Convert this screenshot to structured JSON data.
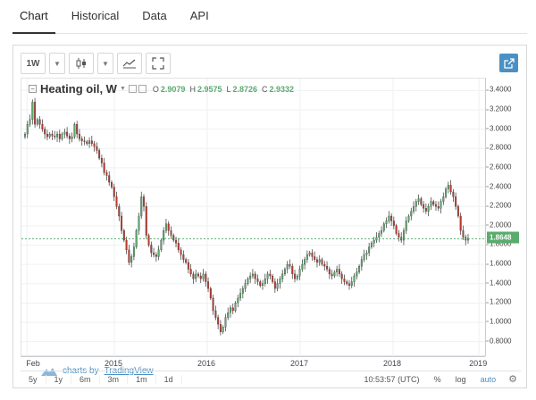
{
  "tabs": [
    "Chart",
    "Historical",
    "Data",
    "API"
  ],
  "toolbar": {
    "interval": "1W"
  },
  "legend": {
    "symbol": "Heating oil, W",
    "open_label": "O",
    "open": "2.9079",
    "high_label": "H",
    "high": "2.9575",
    "low_label": "L",
    "low": "2.8726",
    "close_label": "C",
    "close": "2.9332"
  },
  "last_price": "1.8648",
  "brand": {
    "prefix": "charts by",
    "name": "TradingView"
  },
  "bottom": {
    "ranges": [
      "5y",
      "1y",
      "6m",
      "3m",
      "1m",
      "1d"
    ],
    "clock": "10:53:57 (UTC)",
    "percent": "%",
    "log": "log",
    "auto": "auto"
  },
  "colors": {
    "up": "#5aab6e",
    "down": "#c0392b",
    "accent": "#4a90c4"
  },
  "chart_data": {
    "type": "candlestick",
    "title": "Heating oil, W",
    "x_ticks": [
      "Feb",
      "2015",
      "2016",
      "2017",
      "2018",
      "2019"
    ],
    "y_ticks": [
      "3.4000",
      "3.2000",
      "3.0000",
      "2.8000",
      "2.6000",
      "2.4000",
      "2.2000",
      "2.0000",
      "1.8000",
      "1.6000",
      "1.4000",
      "1.2000",
      "1.0000",
      "0.8000"
    ],
    "ylim": [
      0.75,
      3.45
    ],
    "grid": true,
    "series": [
      {
        "name": "Heating oil",
        "weekly_closes": [
          2.95,
          3.05,
          3.1,
          3.28,
          3.05,
          3.1,
          3.05,
          3.0,
          2.95,
          2.92,
          2.95,
          2.93,
          2.92,
          2.95,
          2.9,
          2.95,
          2.97,
          2.93,
          2.9,
          2.92,
          3.05,
          2.95,
          2.9,
          2.88,
          2.87,
          2.85,
          2.88,
          2.85,
          2.82,
          2.78,
          2.7,
          2.65,
          2.55,
          2.52,
          2.45,
          2.4,
          2.3,
          2.2,
          2.1,
          1.95,
          1.85,
          1.75,
          1.62,
          1.68,
          1.78,
          1.95,
          2.1,
          2.3,
          2.2,
          1.9,
          1.8,
          1.72,
          1.7,
          1.68,
          1.75,
          1.85,
          1.95,
          2.02,
          1.95,
          1.9,
          1.85,
          1.82,
          1.75,
          1.7,
          1.65,
          1.62,
          1.55,
          1.5,
          1.45,
          1.5,
          1.48,
          1.45,
          1.5,
          1.42,
          1.35,
          1.25,
          1.12,
          1.05,
          0.98,
          0.9,
          0.95,
          1.05,
          1.1,
          1.15,
          1.12,
          1.2,
          1.25,
          1.3,
          1.35,
          1.4,
          1.45,
          1.48,
          1.5,
          1.45,
          1.42,
          1.38,
          1.4,
          1.45,
          1.5,
          1.48,
          1.42,
          1.35,
          1.4,
          1.45,
          1.5,
          1.55,
          1.6,
          1.58,
          1.5,
          1.45,
          1.48,
          1.55,
          1.6,
          1.65,
          1.7,
          1.72,
          1.68,
          1.65,
          1.62,
          1.65,
          1.6,
          1.58,
          1.55,
          1.5,
          1.48,
          1.52,
          1.55,
          1.5,
          1.45,
          1.42,
          1.4,
          1.38,
          1.42,
          1.48,
          1.52,
          1.58,
          1.65,
          1.7,
          1.72,
          1.78,
          1.82,
          1.85,
          1.88,
          1.92,
          1.95,
          2.02,
          2.05,
          2.1,
          2.05,
          2.0,
          1.92,
          1.88,
          1.85,
          1.95,
          2.05,
          2.1,
          2.15,
          2.2,
          2.25,
          2.28,
          2.22,
          2.18,
          2.15,
          2.2,
          2.25,
          2.22,
          2.2,
          2.18,
          2.25,
          2.3,
          2.38,
          2.42,
          2.35,
          2.3,
          2.2,
          2.1,
          1.95,
          1.88,
          1.85,
          1.87
        ]
      }
    ]
  }
}
